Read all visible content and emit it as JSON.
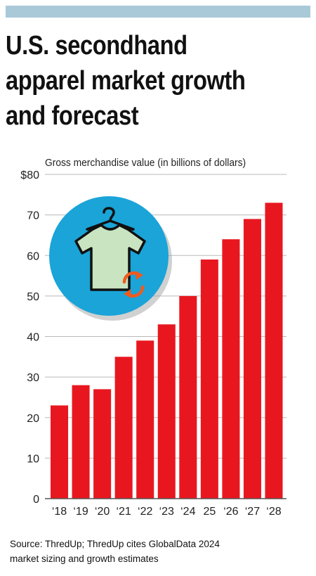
{
  "title_lines": [
    "U.S. secondhand",
    "apparel market growth",
    "and forecast"
  ],
  "chart_data": {
    "type": "bar",
    "title": "U.S. secondhand apparel market growth and forecast",
    "ylabel": "Gross merchandise value (in billions of dollars)",
    "xlabel": "",
    "categories": [
      "‘18",
      "‘19",
      "‘20",
      "‘21",
      "‘22",
      "‘23",
      "‘24",
      "25",
      "‘26",
      "‘27",
      "‘28"
    ],
    "values": [
      23,
      28,
      27,
      35,
      39,
      43,
      50,
      59,
      64,
      69,
      73
    ],
    "ylim": [
      0,
      80
    ],
    "yticks": [
      0,
      10,
      20,
      30,
      40,
      50,
      60,
      70,
      80
    ],
    "ytick_labels": [
      "0",
      "10",
      "20",
      "30",
      "40",
      "50",
      "60",
      "70",
      "$80"
    ],
    "grid": true,
    "bar_color": "#e8171f",
    "grid_color": "#b9b9b9"
  },
  "illustration": {
    "icon": "recycled-shirt-icon",
    "circle_color": "#1aa4d8",
    "shirt_color": "#c8e4c0",
    "arrow_color": "#f05a1e"
  },
  "source_lines": [
    "Source: ThredUp; ThredUp cites GlobalData 2024",
    "market sizing and growth estimates"
  ],
  "accent_bar_color": "#a9c9d8"
}
